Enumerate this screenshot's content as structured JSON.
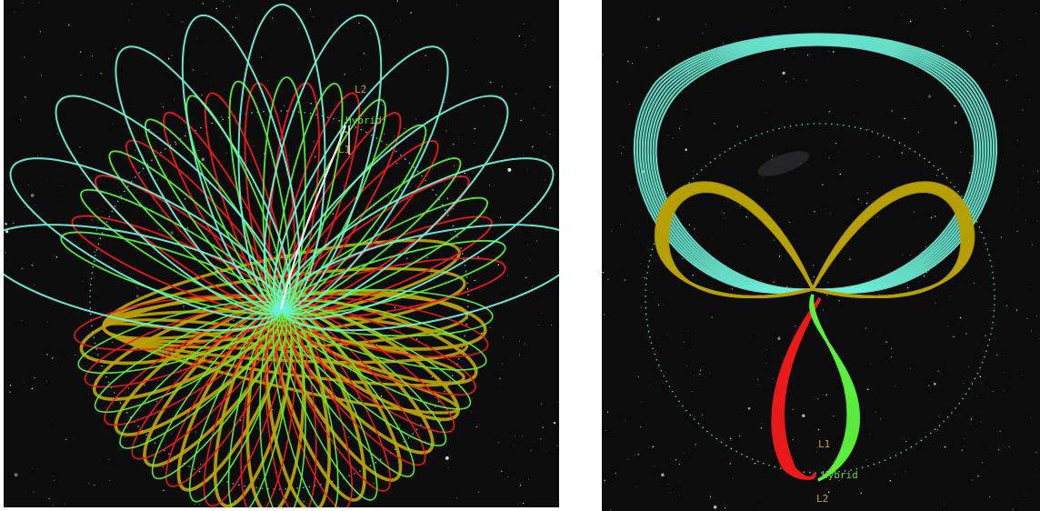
{
  "panels": [
    {
      "labels": {
        "l2": "L2",
        "hybrid": "Hybrid",
        "l1": "L1"
      }
    },
    {
      "labels": {
        "l1": "L1",
        "hybrid": "Hybrid",
        "l2": "L2"
      }
    }
  ],
  "colors": {
    "background": "#0c0c0c",
    "cyan": "#6ef0d8",
    "green": "#5cf03c",
    "red": "#ee1a1a",
    "olive": "#b8a000",
    "white": "#ffffff",
    "label_orange": "#d49a2a",
    "label_green": "#66dd33",
    "circle": "#4fd8c8"
  }
}
